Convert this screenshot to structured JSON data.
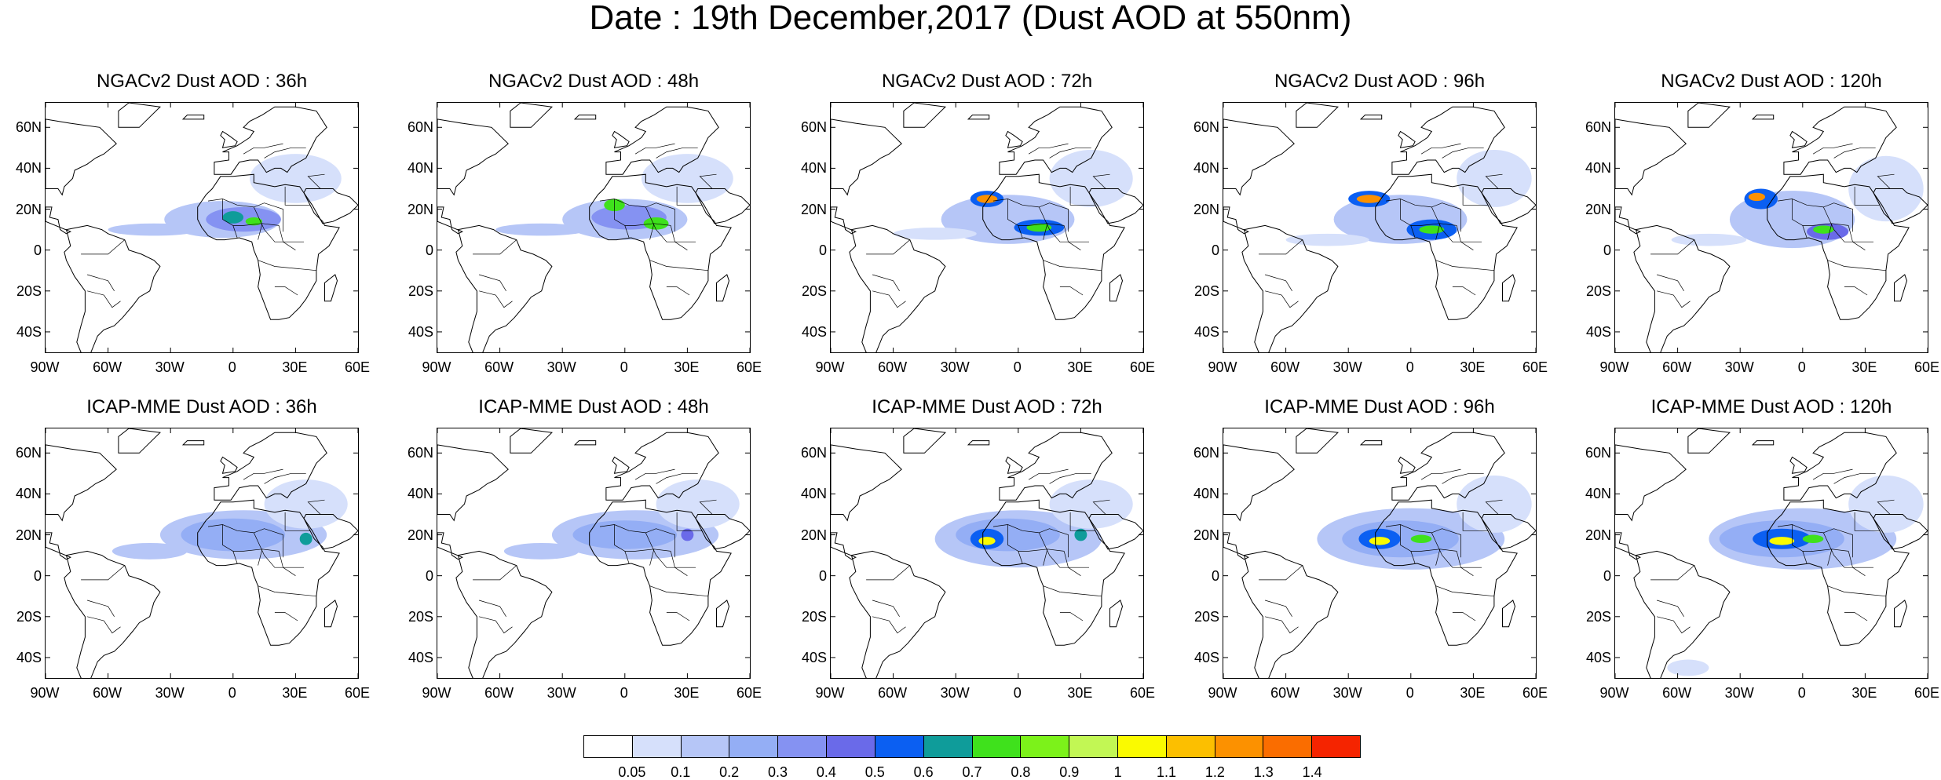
{
  "figure": {
    "title": "Date : 19th December,2017 (Dust AOD at 550nm)"
  },
  "colors": {
    "levels": [
      "#ffffff",
      "#d6e0fb",
      "#b6c6f7",
      "#94aef5",
      "#8592f2",
      "#6a6ae9",
      "#0b5ff2",
      "#0f9c9a",
      "#3fe11c",
      "#7cf21a",
      "#c2f754",
      "#fafa00",
      "#fcbf00",
      "#fc9100",
      "#fa6d00",
      "#f52400"
    ]
  },
  "colorbar": {
    "labels": [
      "0.05",
      "0.1",
      "0.2",
      "0.3",
      "0.4",
      "0.5",
      "0.6",
      "0.7",
      "0.8",
      "0.9",
      "1",
      "1.1",
      "1.2",
      "1.3",
      "1.4"
    ]
  },
  "axes": {
    "lat_labels": [
      "60N",
      "40N",
      "20N",
      "0",
      "20S",
      "40S"
    ],
    "lat_values": [
      60,
      40,
      20,
      0,
      -20,
      -40
    ],
    "lon_labels": [
      "90W",
      "60W",
      "30W",
      "0",
      "30E",
      "60E"
    ],
    "lon_values": [
      -90,
      -60,
      -30,
      0,
      30,
      60
    ],
    "lon_range": [
      -90,
      60
    ],
    "lat_range": [
      -50,
      72
    ]
  },
  "panels": [
    {
      "title": "NGACv2 Dust AOD : 36h",
      "plumes": [
        {
          "lon": -5,
          "lat": 15,
          "rx": 28,
          "ry": 9,
          "level": 2
        },
        {
          "lon": 5,
          "lat": 15,
          "rx": 18,
          "ry": 6,
          "level": 4
        },
        {
          "lon": -38,
          "lat": 10,
          "rx": 22,
          "ry": 3,
          "level": 2
        },
        {
          "lon": 0,
          "lat": 16,
          "rx": 5,
          "ry": 3,
          "level": 7
        },
        {
          "lon": 10,
          "lat": 14,
          "rx": 4,
          "ry": 2,
          "level": 8
        },
        {
          "lon": 30,
          "lat": 35,
          "rx": 22,
          "ry": 12,
          "level": 1
        }
      ]
    },
    {
      "title": "NGACv2 Dust AOD : 48h",
      "plumes": [
        {
          "lon": 0,
          "lat": 15,
          "rx": 30,
          "ry": 10,
          "level": 2
        },
        {
          "lon": 2,
          "lat": 16,
          "rx": 18,
          "ry": 6,
          "level": 4
        },
        {
          "lon": -40,
          "lat": 10,
          "rx": 22,
          "ry": 3,
          "level": 2
        },
        {
          "lon": -5,
          "lat": 22,
          "rx": 5,
          "ry": 3,
          "level": 8
        },
        {
          "lon": 15,
          "lat": 13,
          "rx": 6,
          "ry": 3,
          "level": 8
        },
        {
          "lon": 30,
          "lat": 35,
          "rx": 22,
          "ry": 12,
          "level": 1
        }
      ]
    },
    {
      "title": "NGACv2 Dust AOD : 72h",
      "plumes": [
        {
          "lon": -5,
          "lat": 15,
          "rx": 32,
          "ry": 12,
          "level": 2
        },
        {
          "lon": -15,
          "lat": 25,
          "rx": 8,
          "ry": 4,
          "level": 6
        },
        {
          "lon": -15,
          "lat": 25,
          "rx": 5,
          "ry": 2,
          "level": 13
        },
        {
          "lon": 10,
          "lat": 11,
          "rx": 12,
          "ry": 4,
          "level": 6
        },
        {
          "lon": 10,
          "lat": 11,
          "rx": 6,
          "ry": 2,
          "level": 8
        },
        {
          "lon": -40,
          "lat": 8,
          "rx": 20,
          "ry": 3,
          "level": 1
        },
        {
          "lon": 35,
          "lat": 35,
          "rx": 20,
          "ry": 14,
          "level": 1
        }
      ]
    },
    {
      "title": "NGACv2 Dust AOD : 96h",
      "plumes": [
        {
          "lon": -5,
          "lat": 15,
          "rx": 32,
          "ry": 12,
          "level": 2
        },
        {
          "lon": -20,
          "lat": 25,
          "rx": 10,
          "ry": 4,
          "level": 6
        },
        {
          "lon": -20,
          "lat": 25,
          "rx": 6,
          "ry": 2,
          "level": 13
        },
        {
          "lon": 10,
          "lat": 10,
          "rx": 12,
          "ry": 5,
          "level": 6
        },
        {
          "lon": 10,
          "lat": 10,
          "rx": 6,
          "ry": 2,
          "level": 8
        },
        {
          "lon": -40,
          "lat": 5,
          "rx": 20,
          "ry": 3,
          "level": 1
        },
        {
          "lon": 40,
          "lat": 35,
          "rx": 18,
          "ry": 14,
          "level": 1
        }
      ]
    },
    {
      "title": "NGACv2 Dust AOD : 120h",
      "plumes": [
        {
          "lon": -5,
          "lat": 15,
          "rx": 30,
          "ry": 14,
          "level": 2
        },
        {
          "lon": -20,
          "lat": 25,
          "rx": 8,
          "ry": 5,
          "level": 6
        },
        {
          "lon": -22,
          "lat": 26,
          "rx": 4,
          "ry": 2,
          "level": 13
        },
        {
          "lon": 12,
          "lat": 9,
          "rx": 10,
          "ry": 4,
          "level": 5
        },
        {
          "lon": 10,
          "lat": 10,
          "rx": 5,
          "ry": 2,
          "level": 8
        },
        {
          "lon": -45,
          "lat": 5,
          "rx": 18,
          "ry": 3,
          "level": 1
        },
        {
          "lon": 40,
          "lat": 30,
          "rx": 18,
          "ry": 16,
          "level": 1
        }
      ]
    },
    {
      "title": "ICAP-MME Dust AOD : 36h",
      "plumes": [
        {
          "lon": 5,
          "lat": 20,
          "rx": 40,
          "ry": 12,
          "level": 2
        },
        {
          "lon": 0,
          "lat": 20,
          "rx": 25,
          "ry": 8,
          "level": 3
        },
        {
          "lon": -40,
          "lat": 12,
          "rx": 18,
          "ry": 4,
          "level": 2
        },
        {
          "lon": 35,
          "lat": 18,
          "rx": 3,
          "ry": 3,
          "level": 7
        },
        {
          "lon": 35,
          "lat": 35,
          "rx": 20,
          "ry": 12,
          "level": 1
        }
      ]
    },
    {
      "title": "ICAP-MME Dust AOD : 48h",
      "plumes": [
        {
          "lon": 5,
          "lat": 20,
          "rx": 40,
          "ry": 12,
          "level": 2
        },
        {
          "lon": 0,
          "lat": 20,
          "rx": 25,
          "ry": 7,
          "level": 3
        },
        {
          "lon": -40,
          "lat": 12,
          "rx": 18,
          "ry": 4,
          "level": 2
        },
        {
          "lon": 30,
          "lat": 20,
          "rx": 3,
          "ry": 3,
          "level": 5
        },
        {
          "lon": 35,
          "lat": 35,
          "rx": 20,
          "ry": 12,
          "level": 1
        }
      ]
    },
    {
      "title": "ICAP-MME Dust AOD : 72h",
      "plumes": [
        {
          "lon": 0,
          "lat": 18,
          "rx": 40,
          "ry": 14,
          "level": 2
        },
        {
          "lon": -5,
          "lat": 20,
          "rx": 25,
          "ry": 8,
          "level": 3
        },
        {
          "lon": -15,
          "lat": 18,
          "rx": 8,
          "ry": 5,
          "level": 6
        },
        {
          "lon": -15,
          "lat": 17,
          "rx": 4,
          "ry": 2,
          "level": 11
        },
        {
          "lon": 30,
          "lat": 20,
          "rx": 3,
          "ry": 3,
          "level": 7
        },
        {
          "lon": 35,
          "lat": 35,
          "rx": 20,
          "ry": 12,
          "level": 1
        }
      ]
    },
    {
      "title": "ICAP-MME Dust AOD : 96h",
      "plumes": [
        {
          "lon": 0,
          "lat": 18,
          "rx": 45,
          "ry": 15,
          "level": 2
        },
        {
          "lon": -5,
          "lat": 18,
          "rx": 28,
          "ry": 9,
          "level": 3
        },
        {
          "lon": -15,
          "lat": 18,
          "rx": 10,
          "ry": 5,
          "level": 6
        },
        {
          "lon": -15,
          "lat": 17,
          "rx": 5,
          "ry": 2,
          "level": 11
        },
        {
          "lon": 5,
          "lat": 18,
          "rx": 5,
          "ry": 2,
          "level": 8
        },
        {
          "lon": 40,
          "lat": 35,
          "rx": 18,
          "ry": 14,
          "level": 1
        }
      ]
    },
    {
      "title": "ICAP-MME Dust AOD : 120h",
      "plumes": [
        {
          "lon": 0,
          "lat": 18,
          "rx": 45,
          "ry": 15,
          "level": 2
        },
        {
          "lon": -10,
          "lat": 18,
          "rx": 30,
          "ry": 9,
          "level": 3
        },
        {
          "lon": -10,
          "lat": 18,
          "rx": 14,
          "ry": 5,
          "level": 6
        },
        {
          "lon": -10,
          "lat": 17,
          "rx": 6,
          "ry": 2,
          "level": 11
        },
        {
          "lon": 5,
          "lat": 18,
          "rx": 5,
          "ry": 2,
          "level": 8
        },
        {
          "lon": -55,
          "lat": -45,
          "rx": 10,
          "ry": 4,
          "level": 1
        },
        {
          "lon": 40,
          "lat": 35,
          "rx": 18,
          "ry": 14,
          "level": 1
        }
      ]
    }
  ]
}
